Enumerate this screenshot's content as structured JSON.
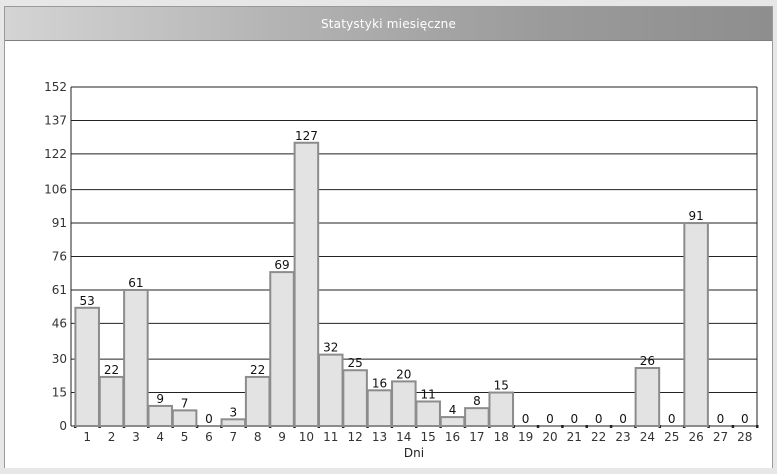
{
  "window": {
    "title": "Statystyki miesięczne"
  },
  "chart_data": {
    "type": "bar",
    "title": "Statystyki miesięczne",
    "xlabel": "Dni",
    "ylabel": "",
    "categories": [
      "1",
      "2",
      "3",
      "4",
      "5",
      "6",
      "7",
      "8",
      "9",
      "10",
      "11",
      "12",
      "13",
      "14",
      "15",
      "16",
      "17",
      "18",
      "19",
      "20",
      "21",
      "22",
      "23",
      "24",
      "25",
      "26",
      "27",
      "28"
    ],
    "values": [
      53,
      22,
      61,
      9,
      7,
      0,
      3,
      22,
      69,
      127,
      32,
      25,
      16,
      20,
      11,
      4,
      8,
      15,
      0,
      0,
      0,
      0,
      0,
      26,
      0,
      91,
      0,
      0
    ],
    "yticks": [
      "0",
      "15",
      "30",
      "46",
      "61",
      "76",
      "91",
      "106",
      "122",
      "137",
      "152"
    ],
    "ylim": [
      0,
      152
    ],
    "grid": true,
    "legend": "none",
    "colors": {
      "bar_fill": "#e3e3e3",
      "bar_stroke": "#8c8c8c",
      "grid": "#222222",
      "axis": "#222222",
      "text": "#333333"
    }
  }
}
